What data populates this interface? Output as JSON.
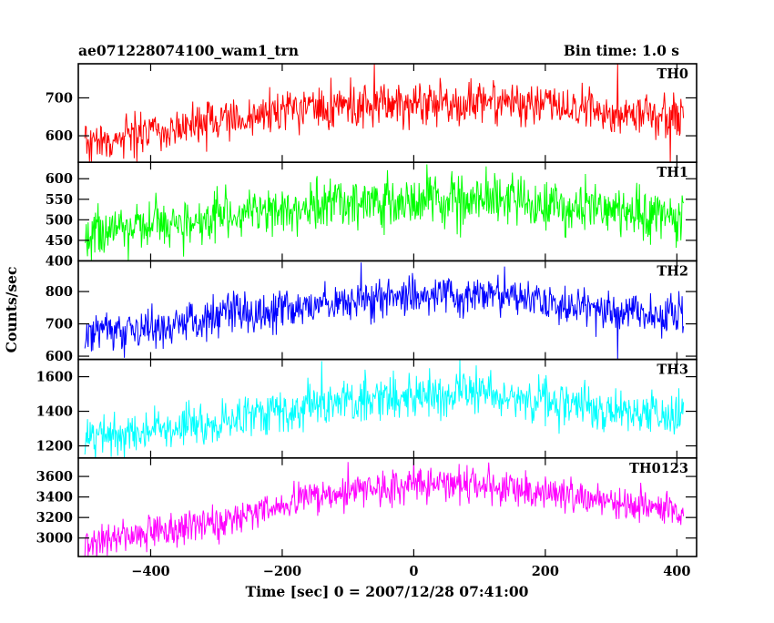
{
  "header": {
    "title": "ae071228074100_wam1_trn",
    "bin_time": "Bin time: 1.0 s"
  },
  "chart_data": {
    "type": "line",
    "title": "ae071228074100_wam1_trn",
    "subtitle": "Bin time: 1.0 s",
    "xlabel": "Time [sec] 0 = 2007/12/28 07:41:00",
    "ylabel": "Counts/sec",
    "xlim": [
      -510,
      430
    ],
    "x_ticks": [
      -400,
      -200,
      0,
      200,
      400
    ],
    "x_range": [
      -500,
      410
    ],
    "x_step": 1,
    "panels": [
      {
        "name": "TH0",
        "color": "#ff0000",
        "ylim": [
          530,
          790
        ],
        "y_ticks": [
          600,
          700
        ],
        "trend": [
          [
            -500,
            575
          ],
          [
            -400,
            605
          ],
          [
            -300,
            635
          ],
          [
            -200,
            660
          ],
          [
            -100,
            675
          ],
          [
            0,
            685
          ],
          [
            100,
            690
          ],
          [
            200,
            680
          ],
          [
            300,
            665
          ],
          [
            410,
            655
          ]
        ],
        "noise": 28,
        "extremes": [
          [
            -60,
            790
          ],
          [
            310,
            790
          ],
          [
            -490,
            530
          ],
          [
            390,
            525
          ]
        ]
      },
      {
        "name": "TH1",
        "color": "#00ff00",
        "ylim": [
          400,
          640
        ],
        "y_ticks": [
          400,
          450,
          500,
          550,
          600
        ],
        "trend": [
          [
            -500,
            465
          ],
          [
            -400,
            485
          ],
          [
            -300,
            505
          ],
          [
            -200,
            525
          ],
          [
            -100,
            540
          ],
          [
            0,
            545
          ],
          [
            100,
            550
          ],
          [
            200,
            535
          ],
          [
            300,
            520
          ],
          [
            410,
            505
          ]
        ],
        "noise": 30,
        "extremes": [
          [
            -490,
            400
          ],
          [
            20,
            635
          ],
          [
            110,
            630
          ]
        ]
      },
      {
        "name": "TH2",
        "color": "#0000ff",
        "ylim": [
          590,
          895
        ],
        "y_ticks": [
          600,
          700,
          800
        ],
        "trend": [
          [
            -500,
            670
          ],
          [
            -400,
            690
          ],
          [
            -300,
            720
          ],
          [
            -200,
            745
          ],
          [
            -100,
            770
          ],
          [
            0,
            785
          ],
          [
            100,
            790
          ],
          [
            200,
            765
          ],
          [
            300,
            740
          ],
          [
            410,
            720
          ]
        ],
        "noise": 32,
        "extremes": [
          [
            -80,
            890
          ],
          [
            310,
            590
          ],
          [
            -440,
            595
          ]
        ]
      },
      {
        "name": "TH3",
        "color": "#00ffff",
        "ylim": [
          1130,
          1700
        ],
        "y_ticks": [
          1200,
          1400,
          1600
        ],
        "trend": [
          [
            -500,
            1240
          ],
          [
            -400,
            1285
          ],
          [
            -300,
            1335
          ],
          [
            -200,
            1405
          ],
          [
            -100,
            1460
          ],
          [
            0,
            1495
          ],
          [
            100,
            1510
          ],
          [
            200,
            1450
          ],
          [
            300,
            1405
          ],
          [
            410,
            1360
          ]
        ],
        "noise": 60,
        "extremes": [
          [
            -140,
            1690
          ],
          [
            70,
            1695
          ],
          [
            -500,
            1150
          ]
        ]
      },
      {
        "name": "TH0123",
        "color": "#ff00ff",
        "ylim": [
          2820,
          3780
        ],
        "y_ticks": [
          3000,
          3200,
          3400,
          3600
        ],
        "trend": [
          [
            -500,
            2950
          ],
          [
            -400,
            3050
          ],
          [
            -300,
            3150
          ],
          [
            -200,
            3330
          ],
          [
            -100,
            3450
          ],
          [
            0,
            3520
          ],
          [
            100,
            3540
          ],
          [
            200,
            3440
          ],
          [
            300,
            3360
          ],
          [
            410,
            3250
          ]
        ],
        "noise": 85,
        "extremes": [
          [
            -500,
            2825
          ],
          [
            0,
            3770
          ],
          [
            -100,
            3740
          ]
        ]
      }
    ]
  }
}
